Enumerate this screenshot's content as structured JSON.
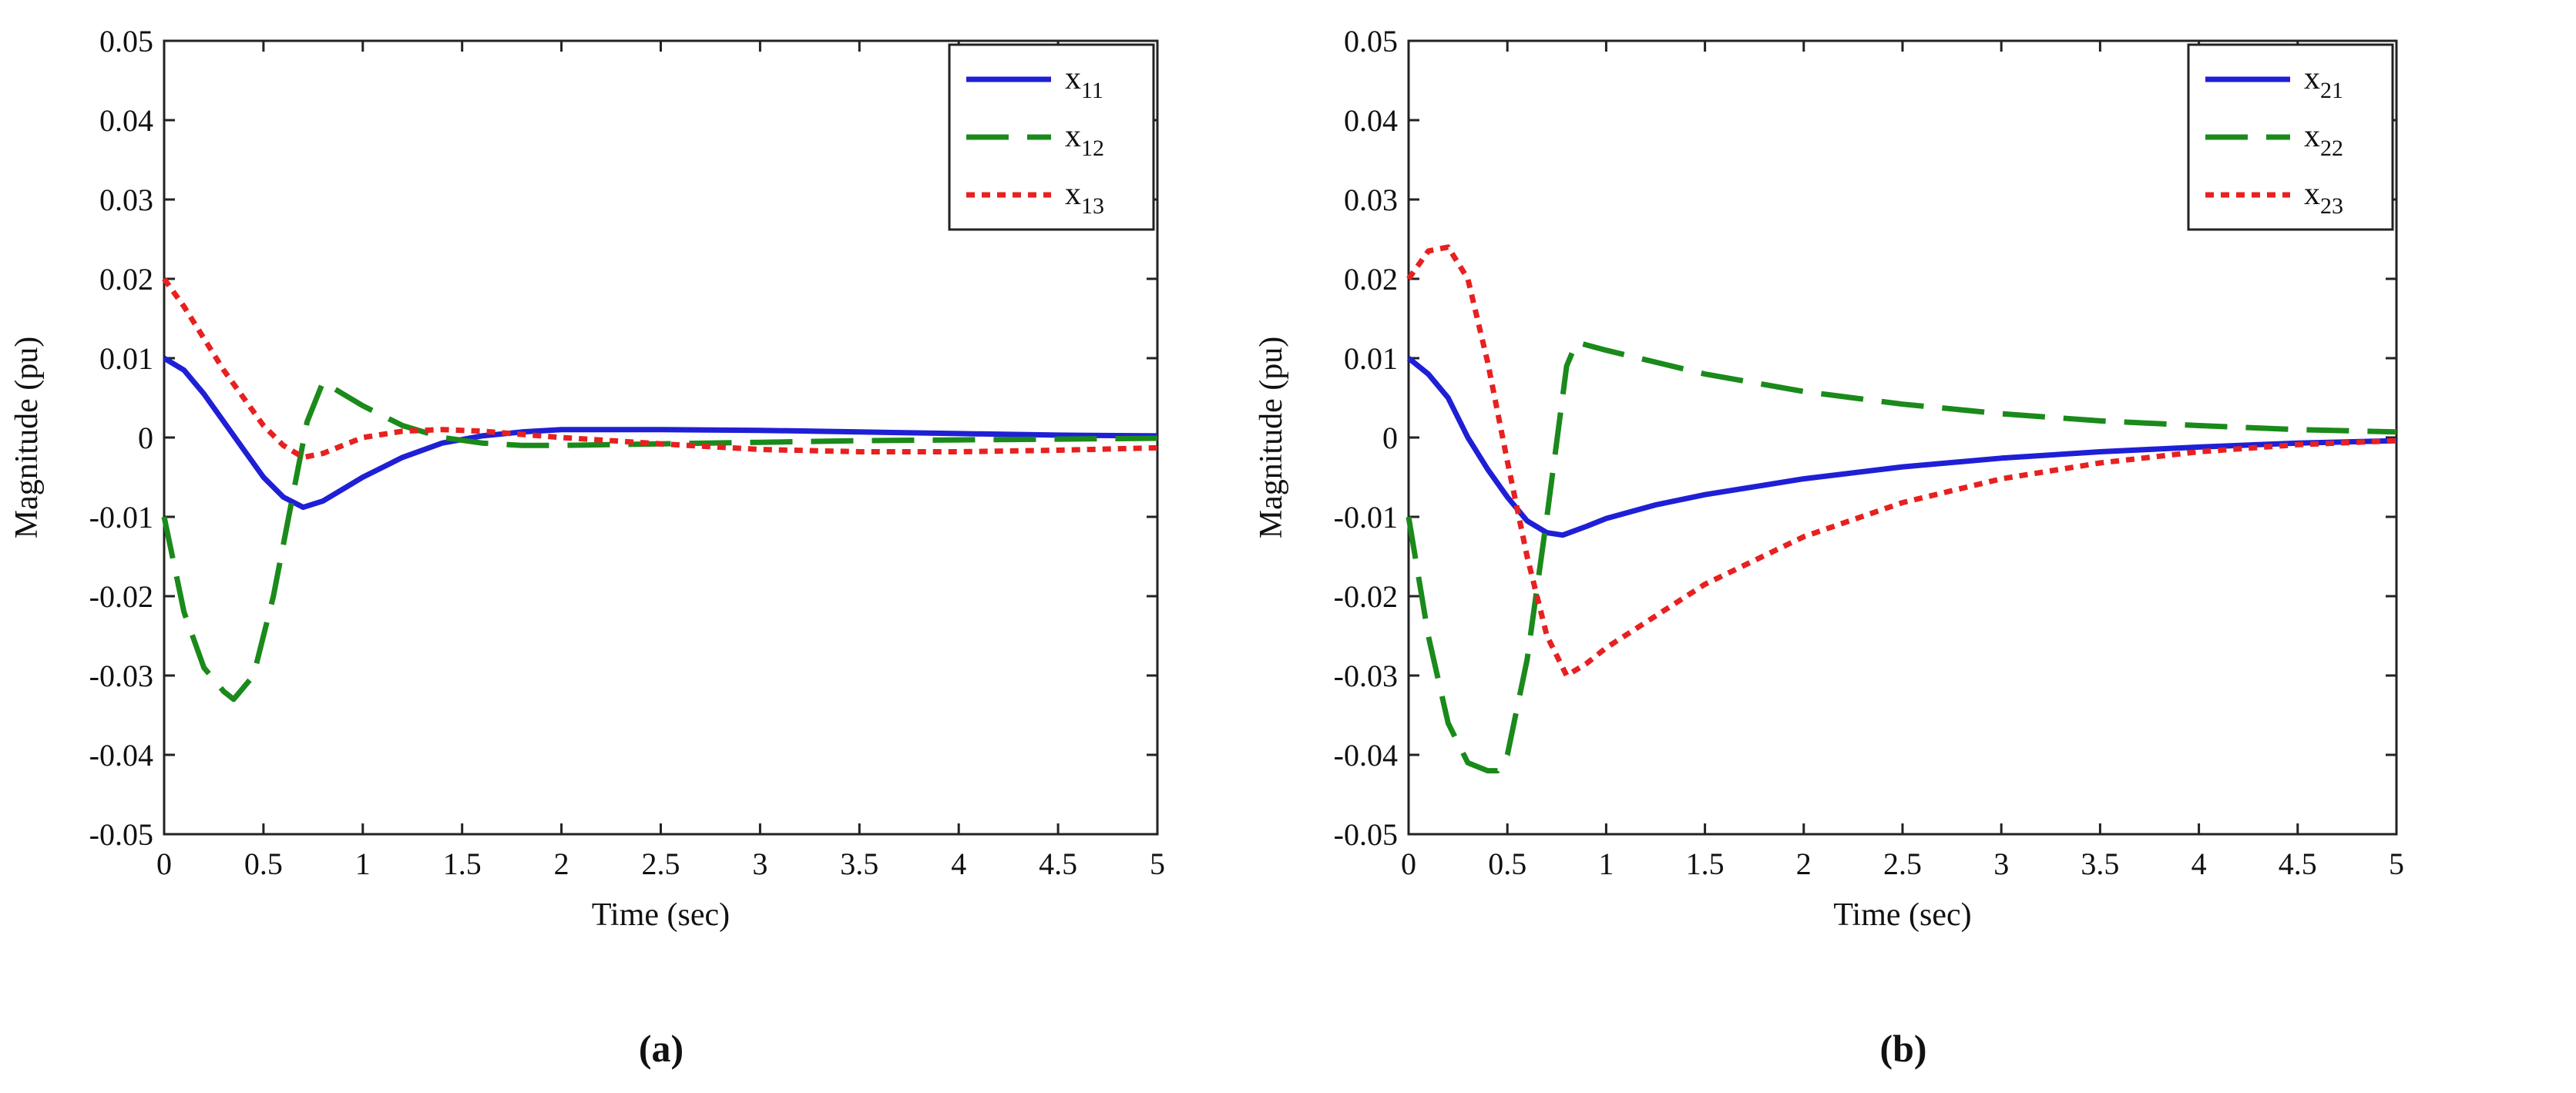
{
  "chart_data": [
    {
      "type": "line",
      "caption": "(a)",
      "xlabel": "Time (sec)",
      "ylabel": "Magnitude (pu)",
      "xlim": [
        0,
        5
      ],
      "ylim": [
        -0.05,
        0.05
      ],
      "xticks": [
        0,
        0.5,
        1,
        1.5,
        2,
        2.5,
        3,
        3.5,
        4,
        4.5,
        5
      ],
      "xtick_labels": [
        "0",
        "0.5",
        "1",
        "1.5",
        "2",
        "2.5",
        "3",
        "3.5",
        "4",
        "4.5",
        "5"
      ],
      "yticks": [
        -0.05,
        -0.04,
        -0.03,
        -0.02,
        -0.01,
        0,
        0.01,
        0.02,
        0.03,
        0.04,
        0.05
      ],
      "ytick_labels": [
        "-0.05",
        "-0.04",
        "-0.03",
        "-0.02",
        "-0.01",
        "0",
        "0.01",
        "0.02",
        "0.03",
        "0.04",
        "0.05"
      ],
      "legend_position": "top-right",
      "series": [
        {
          "name": "x11",
          "label_main": "x",
          "label_sub": "11",
          "color": "#1f1fd6",
          "style": "solid",
          "x": [
            0,
            0.1,
            0.2,
            0.3,
            0.4,
            0.5,
            0.6,
            0.7,
            0.8,
            0.9,
            1.0,
            1.2,
            1.4,
            1.6,
            1.8,
            2.0,
            2.5,
            3.0,
            3.5,
            4.0,
            4.5,
            5.0
          ],
          "y": [
            0.01,
            0.0085,
            0.0055,
            0.002,
            -0.0015,
            -0.005,
            -0.0075,
            -0.0088,
            -0.008,
            -0.0065,
            -0.005,
            -0.0025,
            -0.0007,
            0.0002,
            0.0007,
            0.001,
            0.001,
            0.0009,
            0.0007,
            0.0005,
            0.0003,
            0.0002
          ]
        },
        {
          "name": "x12",
          "label_main": "x",
          "label_sub": "12",
          "color": "#1a8a1a",
          "style": "dashed",
          "x": [
            0,
            0.1,
            0.2,
            0.3,
            0.35,
            0.45,
            0.55,
            0.65,
            0.72,
            0.8,
            0.9,
            1.0,
            1.2,
            1.4,
            1.6,
            1.8,
            2.0,
            2.5,
            3.0,
            3.5,
            4.0,
            4.5,
            5.0
          ],
          "y": [
            -0.01,
            -0.022,
            -0.029,
            -0.032,
            -0.033,
            -0.03,
            -0.02,
            -0.007,
            0.002,
            0.007,
            0.0055,
            0.004,
            0.0015,
            0.0,
            -0.0007,
            -0.001,
            -0.001,
            -0.0008,
            -0.0006,
            -0.0004,
            -0.0003,
            -0.0002,
            -0.0001
          ]
        },
        {
          "name": "x13",
          "label_main": "x",
          "label_sub": "13",
          "color": "#e82020",
          "style": "dotted",
          "x": [
            0,
            0.1,
            0.2,
            0.3,
            0.4,
            0.5,
            0.6,
            0.7,
            0.8,
            0.9,
            1.0,
            1.2,
            1.4,
            1.6,
            2.0,
            2.5,
            3.0,
            3.5,
            4.0,
            4.5,
            5.0
          ],
          "y": [
            0.02,
            0.0165,
            0.0125,
            0.0085,
            0.005,
            0.0015,
            -0.001,
            -0.0025,
            -0.002,
            -0.001,
            0.0,
            0.0008,
            0.001,
            0.0008,
            0.0,
            -0.0008,
            -0.0015,
            -0.0018,
            -0.0018,
            -0.0016,
            -0.0013
          ]
        }
      ]
    },
    {
      "type": "line",
      "caption": "(b)",
      "xlabel": "Time (sec)",
      "ylabel": "Magnitude (pu)",
      "xlim": [
        0,
        5
      ],
      "ylim": [
        -0.05,
        0.05
      ],
      "xticks": [
        0,
        0.5,
        1,
        1.5,
        2,
        2.5,
        3,
        3.5,
        4,
        4.5,
        5
      ],
      "xtick_labels": [
        "0",
        "0.5",
        "1",
        "1.5",
        "2",
        "2.5",
        "3",
        "3.5",
        "4",
        "4.5",
        "5"
      ],
      "yticks": [
        -0.05,
        -0.04,
        -0.03,
        -0.02,
        -0.01,
        0,
        0.01,
        0.02,
        0.03,
        0.04,
        0.05
      ],
      "ytick_labels": [
        "-0.05",
        "-0.04",
        "-0.03",
        "-0.02",
        "-0.01",
        "0",
        "0.01",
        "0.02",
        "0.03",
        "0.04",
        "0.05"
      ],
      "legend_position": "top-right",
      "series": [
        {
          "name": "x21",
          "label_main": "x",
          "label_sub": "21",
          "color": "#1f1fd6",
          "style": "solid",
          "x": [
            0,
            0.1,
            0.2,
            0.3,
            0.4,
            0.5,
            0.6,
            0.7,
            0.78,
            0.9,
            1.0,
            1.25,
            1.5,
            2.0,
            2.5,
            3.0,
            3.5,
            4.0,
            4.5,
            5.0
          ],
          "y": [
            0.01,
            0.008,
            0.005,
            0.0,
            -0.004,
            -0.0075,
            -0.0105,
            -0.012,
            -0.0123,
            -0.0112,
            -0.0102,
            -0.0085,
            -0.0072,
            -0.0052,
            -0.0037,
            -0.0026,
            -0.0018,
            -0.0012,
            -0.0007,
            -0.0004
          ]
        },
        {
          "name": "x22",
          "label_main": "x",
          "label_sub": "22",
          "color": "#1a8a1a",
          "style": "dashed",
          "x": [
            0,
            0.1,
            0.2,
            0.3,
            0.4,
            0.45,
            0.5,
            0.6,
            0.7,
            0.8,
            0.85,
            1.0,
            1.5,
            2.0,
            2.5,
            3.0,
            3.5,
            4.0,
            4.5,
            5.0
          ],
          "y": [
            -0.01,
            -0.025,
            -0.036,
            -0.041,
            -0.042,
            -0.042,
            -0.04,
            -0.028,
            -0.01,
            0.009,
            0.012,
            0.011,
            0.008,
            0.0058,
            0.0042,
            0.003,
            0.0021,
            0.0015,
            0.001,
            0.0007
          ]
        },
        {
          "name": "x23",
          "label_main": "x",
          "label_sub": "23",
          "color": "#e82020",
          "style": "dotted",
          "x": [
            0,
            0.1,
            0.2,
            0.3,
            0.4,
            0.5,
            0.6,
            0.7,
            0.8,
            0.9,
            1.0,
            1.5,
            2.0,
            2.5,
            3.0,
            3.5,
            4.0,
            4.5,
            5.0
          ],
          "y": [
            0.02,
            0.0235,
            0.024,
            0.02,
            0.0095,
            -0.003,
            -0.015,
            -0.025,
            -0.03,
            -0.0285,
            -0.0265,
            -0.0185,
            -0.0125,
            -0.0082,
            -0.0052,
            -0.0032,
            -0.0018,
            -0.0009,
            -0.0004
          ]
        }
      ]
    }
  ]
}
